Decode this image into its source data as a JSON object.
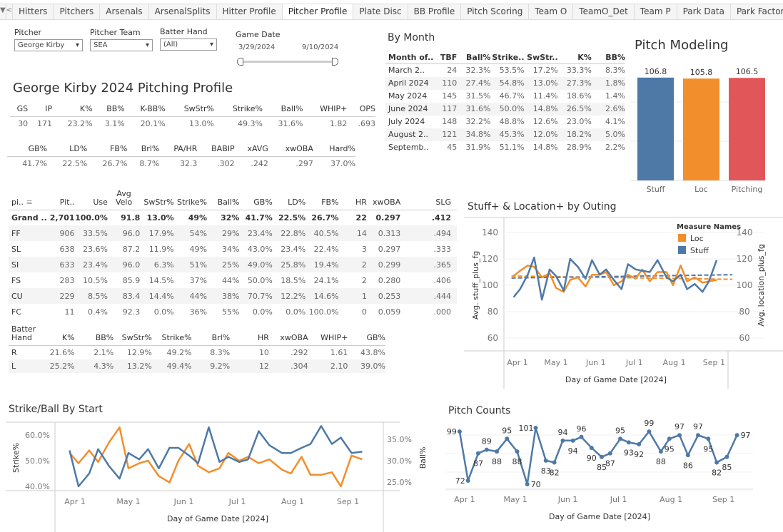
{
  "tabs": {
    "items": [
      "Hitters",
      "Pitchers",
      "Arsenals",
      "ArsenalSplits",
      "Hitter Profile",
      "Pitcher Profile",
      "Plate Disc",
      "BB Profile",
      "Pitch Scoring",
      "Team O",
      "TeamO_Det",
      "Team P",
      "Park Data",
      "Park Factors"
    ],
    "active": "Pitcher Profile"
  },
  "filters": {
    "pitcher_label": "Pitcher",
    "pitcher_value": "George Kirby",
    "team_label": "Pitcher Team",
    "team_value": "SEA",
    "hand_label": "Batter Hand",
    "hand_value": "(All)",
    "date_label": "Game Date",
    "date_start": "3/29/2024",
    "date_end": "9/10/2024"
  },
  "profile": {
    "title": "George Kirby 2024 Pitching Profile",
    "row1": {
      "headers": [
        "GS",
        "IP",
        "K%",
        "BB%",
        "K-BB%",
        "SwStr%",
        "Strike%",
        "Ball%",
        "WHIP+",
        "OPS"
      ],
      "values": [
        "30",
        "171",
        "23.2%",
        "3.1%",
        "20.1%",
        "13.0%",
        "49.3%",
        "31.6%",
        "1.82",
        ".693"
      ]
    },
    "row2": {
      "headers": [
        "GB%",
        "LD%",
        "FB%",
        "Brl%",
        "PA/HR",
        "BABIP",
        "xAVG",
        "xwOBA",
        "Hard%"
      ],
      "values": [
        "41.7%",
        "22.5%",
        "26.7%",
        "8.7%",
        "32.3",
        ".302",
        ".242",
        ".297",
        "37.0%"
      ]
    }
  },
  "by_month": {
    "title": "By Month",
    "headers": [
      "Month of..",
      "TBF",
      "Ball%",
      "Strike..",
      "SwStr..",
      "K%",
      "BB%"
    ],
    "rows": [
      [
        "March 2..",
        "24",
        "32.3%",
        "53.5%",
        "17.2%",
        "33.3%",
        "8.3%"
      ],
      [
        "April 2024",
        "110",
        "27.4%",
        "54.8%",
        "13.0%",
        "27.3%",
        "1.8%"
      ],
      [
        "May 2024",
        "145",
        "31.5%",
        "46.7%",
        "11.4%",
        "18.6%",
        "1.4%"
      ],
      [
        "June 2024",
        "117",
        "31.6%",
        "50.0%",
        "14.8%",
        "26.5%",
        "2.6%"
      ],
      [
        "July 2024",
        "148",
        "32.2%",
        "48.8%",
        "12.6%",
        "23.0%",
        "4.1%"
      ],
      [
        "August 2..",
        "121",
        "34.8%",
        "45.3%",
        "12.0%",
        "18.2%",
        "5.0%"
      ],
      [
        "Septemb..",
        "45",
        "31.9%",
        "51.1%",
        "14.8%",
        "28.9%",
        "2.2%"
      ]
    ]
  },
  "pitch_modeling": {
    "title": "Pitch Modeling",
    "bars": [
      {
        "label": "Stuff",
        "value": 106.8,
        "color": "#4e79a7"
      },
      {
        "label": "Loc",
        "value": 105.8,
        "color": "#f28e2b"
      },
      {
        "label": "Pitching",
        "value": 106.5,
        "color": "#e15759"
      }
    ],
    "ylim": [
      0,
      110
    ]
  },
  "pitch_table": {
    "headers": [
      "pi..",
      "Pit..",
      "Use",
      "Avg Velo",
      "SwStr%",
      "Strike%",
      "Ball%",
      "GB%",
      "LD%",
      "FB%",
      "HR",
      "xwOBA",
      "SLG"
    ],
    "rows": [
      [
        "Grand ..",
        "2,701",
        "100.0%",
        "91.8",
        "13.0%",
        "49%",
        "32%",
        "41.7%",
        "22.5%",
        "26.7%",
        "22",
        "0.297",
        ".412"
      ],
      [
        "FF",
        "906",
        "33.5%",
        "96.0",
        "17.9%",
        "54%",
        "29%",
        "23.4%",
        "22.8%",
        "40.5%",
        "14",
        "0.313",
        ".494"
      ],
      [
        "SL",
        "638",
        "23.6%",
        "87.2",
        "11.9%",
        "49%",
        "34%",
        "43.0%",
        "23.4%",
        "22.4%",
        "3",
        "0.297",
        ".333"
      ],
      [
        "SI",
        "633",
        "23.4%",
        "96.0",
        "6.3%",
        "51%",
        "25%",
        "49.0%",
        "25.8%",
        "19.4%",
        "2",
        "0.299",
        ".365"
      ],
      [
        "FS",
        "283",
        "10.5%",
        "85.9",
        "14.5%",
        "37%",
        "44%",
        "50.0%",
        "18.5%",
        "24.1%",
        "2",
        "0.280",
        ".406"
      ],
      [
        "CU",
        "229",
        "8.5%",
        "83.4",
        "14.4%",
        "44%",
        "38%",
        "70.7%",
        "12.2%",
        "14.6%",
        "1",
        "0.253",
        ".444"
      ],
      [
        "FC",
        "11",
        "0.4%",
        "92.3",
        "0.0%",
        "36%",
        "55%",
        "0.0%",
        "0.0%",
        "100.0%",
        "0",
        "0.059",
        ".000"
      ]
    ]
  },
  "hand_table": {
    "headers": [
      "Batter Hand",
      "K%",
      "BB%",
      "SwStr%",
      "Strike%",
      "Brl%",
      "HR",
      "xwOBA",
      "WHIP+",
      "GB%"
    ],
    "rows": [
      [
        "R",
        "21.6%",
        "2.1%",
        "12.9%",
        "49.2%",
        "8.3%",
        "10",
        ".292",
        "1.61",
        "43.8%"
      ],
      [
        "L",
        "25.2%",
        "4.3%",
        "13.2%",
        "49.4%",
        "9.2%",
        "12",
        ".304",
        "2.10",
        "39.0%"
      ]
    ]
  },
  "chart_data": [
    {
      "type": "line",
      "title": "Stuff+ & Location+ by Outing",
      "xlabel": "Day of Game Date [2024]",
      "ylabel": "Avg. stuff_plus_fg",
      "ylabel_right": "Avg. location_plus_fg",
      "ylim": [
        50,
        150
      ],
      "yticks": [
        "140",
        "120",
        "100",
        "80",
        "60"
      ],
      "xticks": [
        "Apr 1",
        "May 1",
        "Jun 1",
        "Jul 1",
        "Aug 1",
        "Sep 1"
      ],
      "legend_title": "Measure Names",
      "legend": "top-right",
      "dates": [
        "2024-03-29",
        "2024-04-03",
        "2024-04-09",
        "2024-04-14",
        "2024-04-20",
        "2024-04-26",
        "2024-05-01",
        "2024-05-07",
        "2024-05-12",
        "2024-05-18",
        "2024-05-24",
        "2024-05-29",
        "2024-06-04",
        "2024-06-09",
        "2024-06-15",
        "2024-06-21",
        "2024-06-26",
        "2024-07-02",
        "2024-07-07",
        "2024-07-13",
        "2024-07-19",
        "2024-07-26",
        "2024-07-31",
        "2024-08-06",
        "2024-08-11",
        "2024-08-17",
        "2024-08-23",
        "2024-08-28",
        "2024-09-03"
      ],
      "series": [
        {
          "name": "Loc",
          "color": "#f28e2b",
          "values": [
            107,
            111,
            115,
            114,
            106,
            109,
            98,
            95,
            104,
            106,
            99,
            108,
            108,
            110,
            100,
            103,
            108,
            105,
            112,
            103,
            110,
            110,
            100,
            115,
            103,
            106,
            102,
            103,
            104
          ],
          "trend": [
            107,
            104.5
          ]
        },
        {
          "name": "Stuff",
          "color": "#4e79a7",
          "values": [
            91,
            97,
            108,
            121,
            89,
            112,
            107,
            96,
            120,
            114,
            105,
            119,
            108,
            112,
            104,
            97,
            116,
            112,
            111,
            110,
            119,
            106,
            103,
            108,
            97,
            101,
            95,
            103,
            119
          ],
          "trend": [
            105.5,
            108
          ]
        }
      ]
    },
    {
      "type": "line",
      "title": "Strike/Ball By Start",
      "xlabel": "Day of Game Date [2024]",
      "ylabel": "Strike%",
      "ylabel_right": "Ball%",
      "yticks": [
        "60.0%",
        "50.0%",
        "40.0%"
      ],
      "yticks_right": [
        "35.0%",
        "30.0%",
        "25.0%"
      ],
      "xticks": [
        "Apr 1",
        "May 1",
        "Jun 1",
        "Jul 1",
        "Aug 1",
        "Sep 1"
      ],
      "dates": [
        "2024-03-29",
        "2024-04-03",
        "2024-04-09",
        "2024-04-14",
        "2024-04-20",
        "2024-04-26",
        "2024-05-01",
        "2024-05-07",
        "2024-05-12",
        "2024-05-18",
        "2024-05-24",
        "2024-05-29",
        "2024-06-04",
        "2024-06-09",
        "2024-06-15",
        "2024-06-21",
        "2024-06-26",
        "2024-07-02",
        "2024-07-07",
        "2024-07-13",
        "2024-07-19",
        "2024-07-26",
        "2024-07-31",
        "2024-08-06",
        "2024-08-11",
        "2024-08-17",
        "2024-08-23",
        "2024-08-28",
        "2024-09-03",
        "2024-09-09"
      ],
      "series": [
        {
          "name": "Strike%",
          "axis": "left",
          "color": "#4e79a7",
          "values": [
            54,
            40,
            45,
            54.5,
            48,
            43,
            53,
            50.5,
            54.5,
            47,
            55,
            55,
            52,
            49,
            63,
            49.5,
            51.5,
            49.5,
            50.5,
            61.5,
            56,
            53,
            53,
            55,
            56.5,
            63.5,
            56.5,
            59,
            53,
            53.5
          ]
        },
        {
          "name": "Ball%",
          "axis": "right",
          "color": "#f28e2b",
          "values": [
            31.8,
            29.4,
            32.4,
            29.7,
            34.2,
            37.8,
            28.2,
            29.4,
            30,
            26.4,
            24.9,
            30,
            33.9,
            28.8,
            27.3,
            28.2,
            31.8,
            30,
            30.9,
            29.4,
            30.3,
            27.9,
            27,
            30.9,
            26.7,
            26.7,
            27.3,
            24,
            31.2,
            30.3
          ]
        }
      ]
    },
    {
      "type": "line",
      "title": "Pitch Counts",
      "xlabel": "Day of Game Date [2024]",
      "xticks": [
        "Apr 1",
        "May 1",
        "Jun 1",
        "Jul 1",
        "Aug 1",
        "Sep 1"
      ],
      "dates": [
        "2024-03-29",
        "2024-04-03",
        "2024-04-09",
        "2024-04-14",
        "2024-04-20",
        "2024-04-26",
        "2024-05-02",
        "2024-05-08",
        "2024-05-13",
        "2024-05-19",
        "2024-05-24",
        "2024-05-29",
        "2024-06-04",
        "2024-06-09",
        "2024-06-15",
        "2024-06-21",
        "2024-06-26",
        "2024-07-02",
        "2024-07-07",
        "2024-07-13",
        "2024-07-19",
        "2024-07-26",
        "2024-07-31",
        "2024-08-06",
        "2024-08-11",
        "2024-08-17",
        "2024-08-23",
        "2024-08-28",
        "2024-09-03",
        "2024-09-09"
      ],
      "series": [
        {
          "name": "Pitches",
          "color": "#4e79a7",
          "values": [
            99,
            72,
            87,
            89,
            88,
            95,
            88,
            70,
            101,
            83,
            82,
            94,
            94,
            96,
            90,
            85,
            87,
            95,
            93,
            92,
            99,
            88,
            95,
            97,
            86,
            97,
            95,
            82,
            85,
            97
          ]
        }
      ]
    }
  ]
}
